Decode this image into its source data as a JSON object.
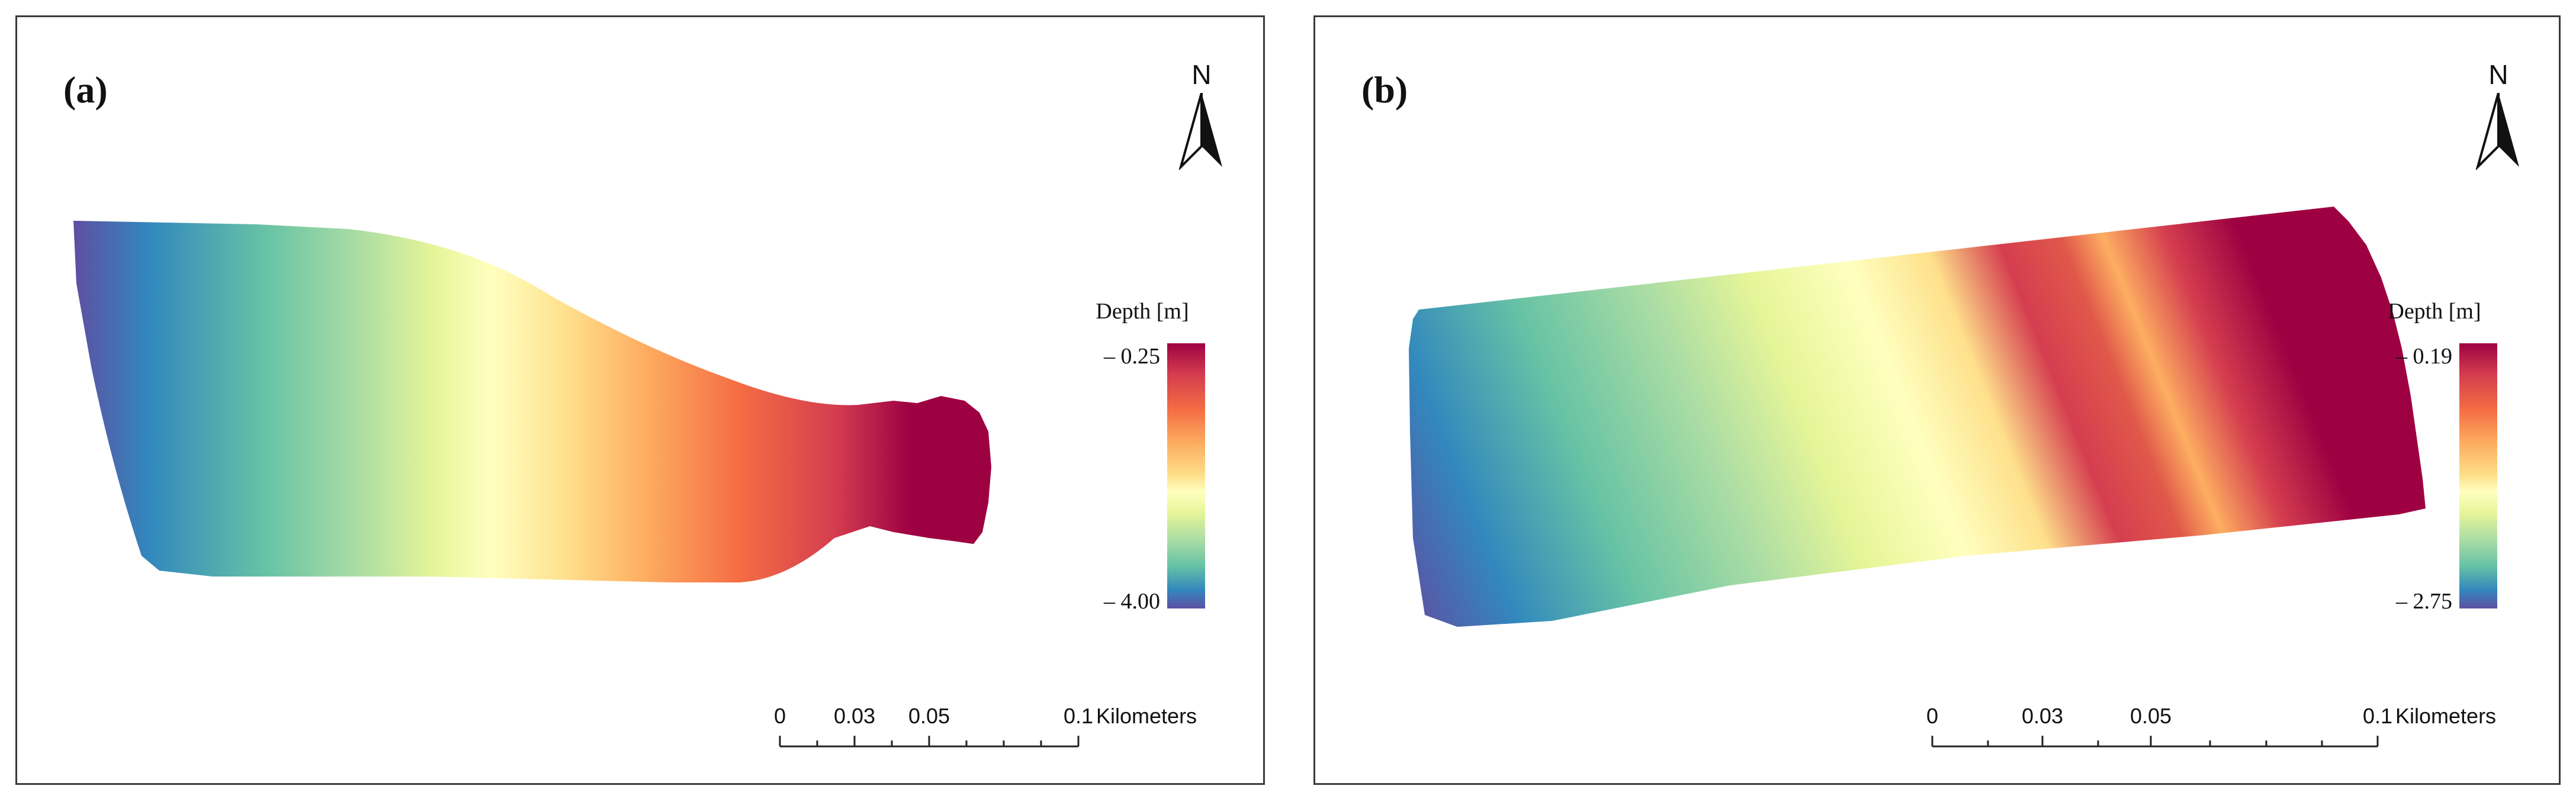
{
  "panels": {
    "a": {
      "label": "(a)",
      "north": "N",
      "legend_title": "Depth [m]",
      "legend_max": "– 0.25",
      "legend_min": "– 4.00",
      "scale_ticks": [
        "0",
        "0.03",
        "0.05",
        "0.1"
      ],
      "scale_unit": "Kilometers"
    },
    "b": {
      "label": "(b)",
      "north": "N",
      "legend_title": "Depth [m]",
      "legend_max": "– 0.19",
      "legend_min": "– 2.75",
      "scale_ticks": [
        "0",
        "0.03",
        "0.05",
        "0.1"
      ],
      "scale_unit": "Kilometers"
    }
  },
  "colormap": [
    "#5e4fa2",
    "#3288bd",
    "#66c2a5",
    "#abdda4",
    "#e6f598",
    "#ffffbf",
    "#fee08b",
    "#fdae61",
    "#f46d43",
    "#d53e4f",
    "#9e0142"
  ],
  "icons": {
    "north_arrow": "north-arrow-icon"
  }
}
